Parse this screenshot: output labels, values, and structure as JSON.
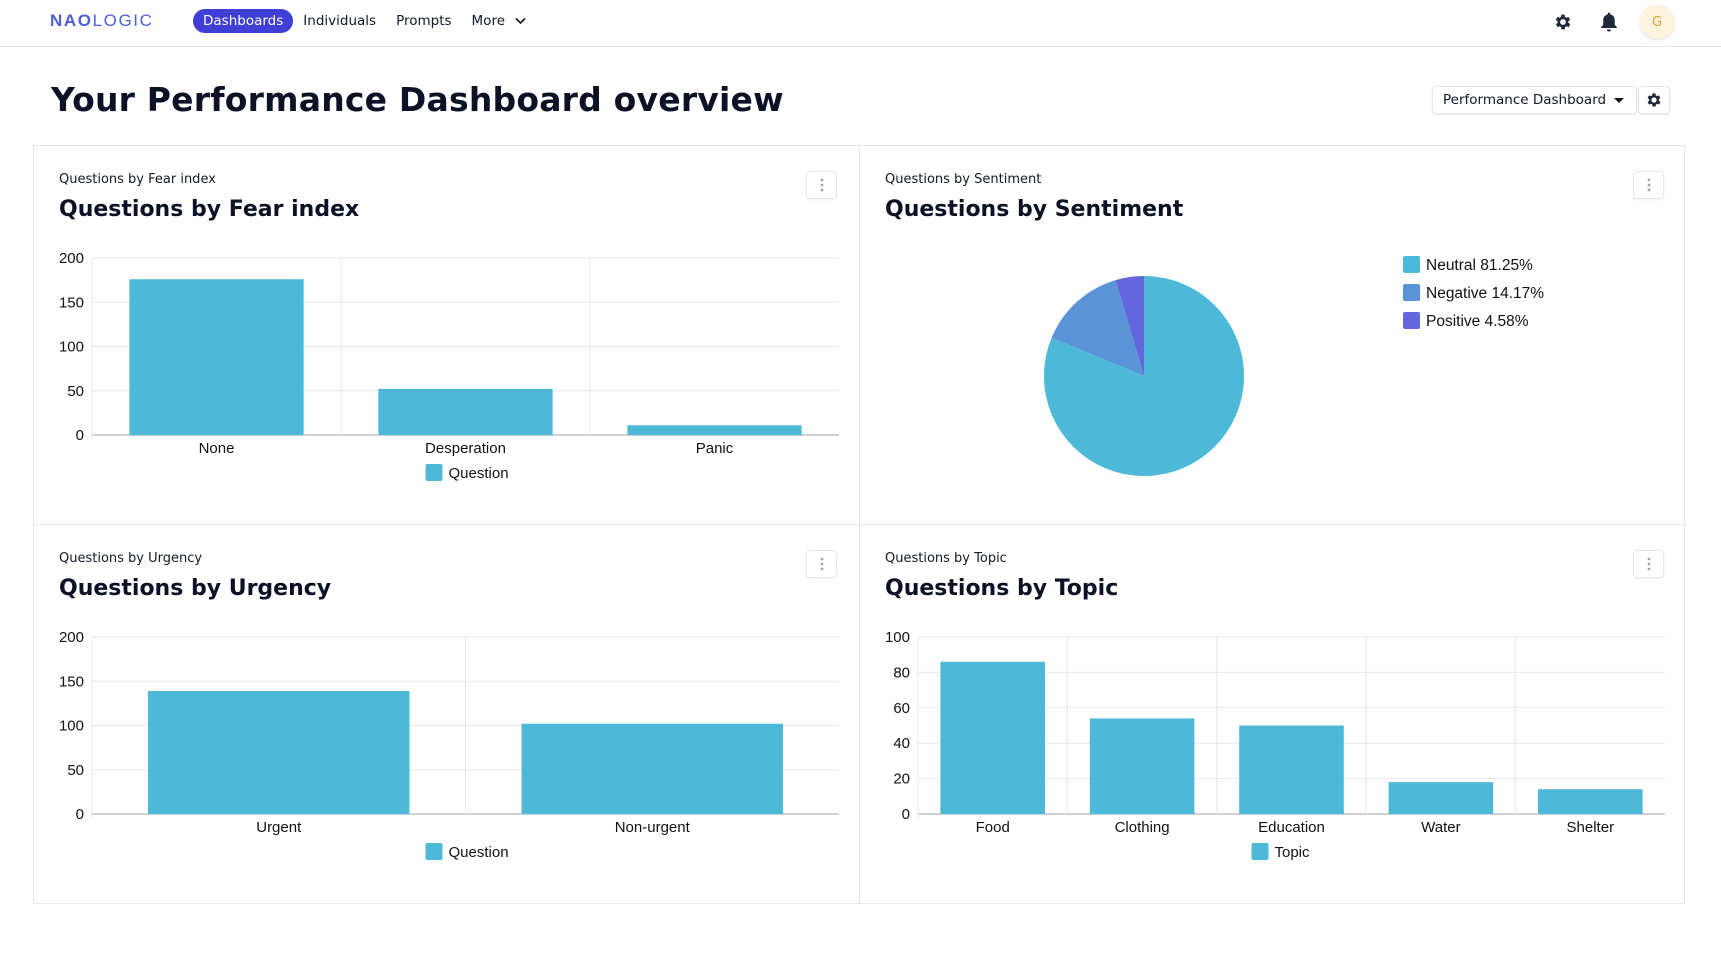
{
  "app": {
    "logo_bold": "NAO",
    "logo_light": "LOGIC",
    "avatar_initial": "G"
  },
  "nav": {
    "items": [
      {
        "label": "Dashboards",
        "active": true
      },
      {
        "label": "Individuals",
        "active": false
      },
      {
        "label": "Prompts",
        "active": false
      },
      {
        "label": "More",
        "active": false
      }
    ]
  },
  "header": {
    "title": "Your Performance Dashboard overview",
    "dashboard_select": "Performance Dashboard"
  },
  "colors": {
    "bar": "#4eb8d9",
    "neutral": "#4eb8d9",
    "negative": "#5b93d9",
    "positive": "#6366dd",
    "accent": "#3f3fd6"
  },
  "cards": [
    {
      "subtitle": "Questions by Fear index",
      "title": "Questions by Fear index"
    },
    {
      "subtitle": "Questions by Sentiment",
      "title": "Questions by Sentiment"
    },
    {
      "subtitle": "Questions by Urgency",
      "title": "Questions by Urgency"
    },
    {
      "subtitle": "Questions by Topic",
      "title": "Questions by Topic"
    }
  ],
  "chart_data": [
    {
      "type": "bar",
      "title": "Questions by Fear index",
      "categories": [
        "None",
        "Desperation",
        "Panic"
      ],
      "series": [
        {
          "name": "Question",
          "values": [
            176,
            52,
            11
          ]
        }
      ],
      "ylim": [
        0,
        200
      ],
      "yticks": [
        0,
        50,
        100,
        150,
        200
      ],
      "legend": "bottom",
      "grid": true
    },
    {
      "type": "pie",
      "title": "Questions by Sentiment",
      "slices": [
        {
          "label": "Neutral",
          "value": 81.25,
          "display": "Neutral 81.25%"
        },
        {
          "label": "Negative",
          "value": 14.17,
          "display": "Negative 14.17%"
        },
        {
          "label": "Positive",
          "value": 4.58,
          "display": "Positive 4.58%"
        }
      ],
      "legend": "top-right"
    },
    {
      "type": "bar",
      "title": "Questions by Urgency",
      "categories": [
        "Urgent",
        "Non-urgent"
      ],
      "series": [
        {
          "name": "Question",
          "values": [
            139,
            102
          ]
        }
      ],
      "ylim": [
        0,
        200
      ],
      "yticks": [
        0,
        50,
        100,
        150,
        200
      ],
      "legend": "bottom",
      "grid": true
    },
    {
      "type": "bar",
      "title": "Questions by Topic",
      "categories": [
        "Food",
        "Clothing",
        "Education",
        "Water",
        "Shelter"
      ],
      "series": [
        {
          "name": "Topic",
          "values": [
            86,
            54,
            50,
            18,
            14
          ]
        }
      ],
      "ylim": [
        0,
        100
      ],
      "yticks": [
        0,
        20,
        40,
        60,
        80,
        100
      ],
      "legend": "bottom",
      "grid": true
    }
  ]
}
